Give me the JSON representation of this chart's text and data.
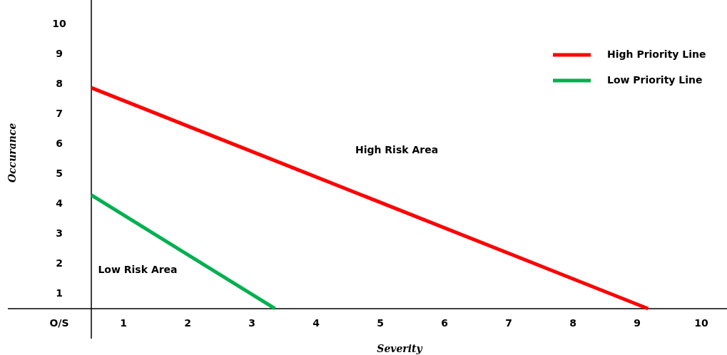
{
  "chart_data": {
    "type": "line",
    "xlabel": "Severity",
    "ylabel": "Occurance",
    "xlim": [
      -1.3,
      9.9
    ],
    "ylim": [
      -1,
      10.3
    ],
    "xticks": [
      {
        "value": -0.5,
        "label": "O/S"
      },
      {
        "value": 0.5,
        "label": "1"
      },
      {
        "value": 1.5,
        "label": "2"
      },
      {
        "value": 2.5,
        "label": "3"
      },
      {
        "value": 3.5,
        "label": "4"
      },
      {
        "value": 4.5,
        "label": "5"
      },
      {
        "value": 5.5,
        "label": "6"
      },
      {
        "value": 6.5,
        "label": "7"
      },
      {
        "value": 7.5,
        "label": "8"
      },
      {
        "value": 8.5,
        "label": "9"
      },
      {
        "value": 9.5,
        "label": "10"
      }
    ],
    "yticks": [
      {
        "value": 0.5,
        "label": "1"
      },
      {
        "value": 1.5,
        "label": "2"
      },
      {
        "value": 2.5,
        "label": "3"
      },
      {
        "value": 3.5,
        "label": "4"
      },
      {
        "value": 4.5,
        "label": "5"
      },
      {
        "value": 5.5,
        "label": "6"
      },
      {
        "value": 6.5,
        "label": "7"
      },
      {
        "value": 7.5,
        "label": "8"
      },
      {
        "value": 8.5,
        "label": "9"
      },
      {
        "value": 9.5,
        "label": "10"
      }
    ],
    "series": [
      {
        "name": "High Priority Line",
        "color": "#ff0000",
        "x": [
          0,
          8.67
        ],
        "values": [
          7.37,
          0
        ]
      },
      {
        "name": "Low Priority Line",
        "color": "#00b050",
        "x": [
          0,
          2.86
        ],
        "values": [
          3.79,
          0
        ]
      }
    ],
    "annotations": [
      "High Risk Area",
      "Low Risk Area"
    ],
    "legend": "top right",
    "grid": false,
    "marker": "none",
    "line_style": "solid"
  }
}
